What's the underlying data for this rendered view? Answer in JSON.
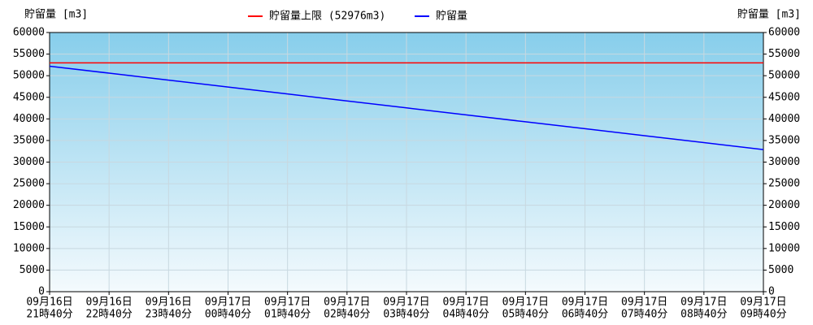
{
  "chart_data": {
    "type": "line",
    "y_label": "貯留量 [m3]",
    "y2_label": "貯留量 [m3]",
    "categories": [
      [
        "09月16日",
        "21時40分"
      ],
      [
        "09月16日",
        "22時40分"
      ],
      [
        "09月16日",
        "23時40分"
      ],
      [
        "09月17日",
        "00時40分"
      ],
      [
        "09月17日",
        "01時40分"
      ],
      [
        "09月17日",
        "02時40分"
      ],
      [
        "09月17日",
        "03時40分"
      ],
      [
        "09月17日",
        "04時40分"
      ],
      [
        "09月17日",
        "05時40分"
      ],
      [
        "09月17日",
        "06時40分"
      ],
      [
        "09月17日",
        "07時40分"
      ],
      [
        "09月17日",
        "08時40分"
      ],
      [
        "09月17日",
        "09時40分"
      ]
    ],
    "series": [
      {
        "name": "貯留量上限 (52976m3)",
        "color": "#ff0000",
        "values": [
          52976,
          52976,
          52976,
          52976,
          52976,
          52976,
          52976,
          52976,
          52976,
          52976,
          52976,
          52976,
          52976
        ]
      },
      {
        "name": "貯留量",
        "color": "#0000ff",
        "values": [
          52200,
          50590,
          48980,
          47380,
          45770,
          44160,
          42550,
          40940,
          39330,
          37730,
          36120,
          34510,
          32900
        ]
      }
    ],
    "ylim": [
      0,
      60000
    ],
    "yticks": [
      0,
      5000,
      10000,
      15000,
      20000,
      25000,
      30000,
      35000,
      40000,
      45000,
      50000,
      55000,
      60000
    ],
    "y2lim": [
      0,
      60000
    ],
    "y2ticks": [
      0,
      5000,
      10000,
      15000,
      20000,
      25000,
      30000,
      35000,
      40000,
      45000,
      50000,
      55000,
      60000
    ],
    "grid": true
  }
}
